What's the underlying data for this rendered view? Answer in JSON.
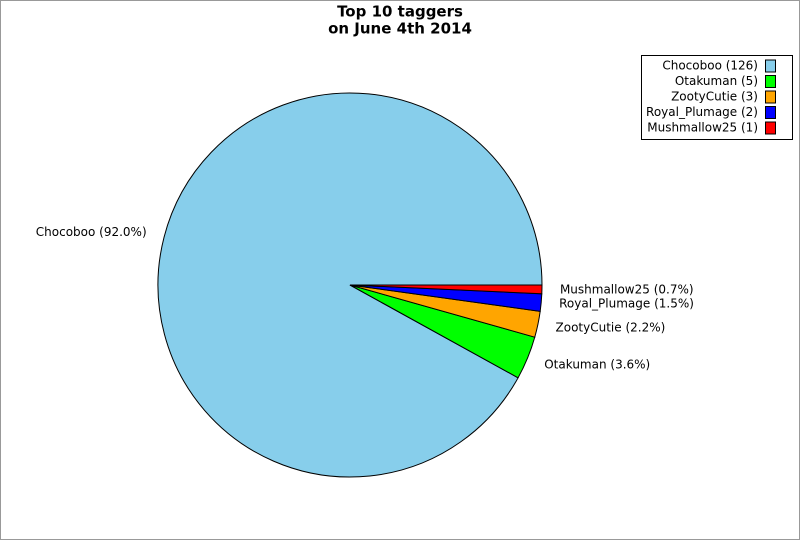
{
  "chart_data": {
    "type": "pie",
    "title": "Top 10 taggers",
    "subtitle": "on June 4th 2014",
    "categories": [
      "Chocoboo",
      "Otakuman",
      "ZootyCutie",
      "Royal_Plumage",
      "Mushmallow25"
    ],
    "values": [
      126,
      5,
      3,
      2,
      1
    ],
    "value_labels": [
      "Chocoboo (92.0%)",
      "Otakuman (3.6%)",
      "ZootyCutie (2.2%)",
      "Royal_Plumage (1.5%)",
      "Mushmallow25 (0.7%)"
    ],
    "legend_labels": [
      "Chocoboo (126)",
      "Otakuman (5)",
      "ZootyCutie (3)",
      "Royal_Plumage (2)",
      "Mushmallow25 (1)"
    ],
    "colors": [
      "#87ceeb",
      "#00ff00",
      "#ffa500",
      "#0000ff",
      "#ff0000"
    ],
    "legend": "top-right"
  }
}
